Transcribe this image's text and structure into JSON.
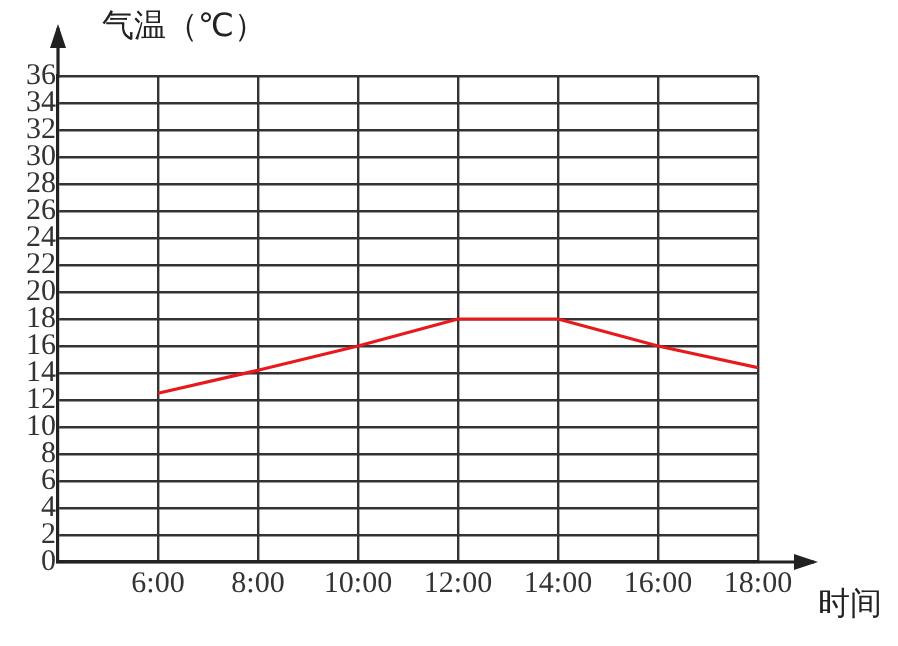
{
  "chart_data": {
    "type": "line",
    "ylabel": "气温（℃）",
    "xlabel": "时间",
    "x": [
      6,
      8,
      10,
      12,
      14,
      16,
      18
    ],
    "series": [
      {
        "color": "#e8191c",
        "values": [
          12.5,
          14.2,
          16,
          18,
          18,
          16,
          14.4
        ]
      }
    ],
    "xlim": [
      4,
      18
    ],
    "xticks": [
      {
        "value": 6,
        "label": "6:00"
      },
      {
        "value": 8,
        "label": "8:00"
      },
      {
        "value": 10,
        "label": "10:00"
      },
      {
        "value": 12,
        "label": "12:00"
      },
      {
        "value": 14,
        "label": "14:00"
      },
      {
        "value": 16,
        "label": "16:00"
      },
      {
        "value": 18,
        "label": "18:00"
      }
    ],
    "ylim": [
      0,
      36
    ],
    "yticks": [
      0,
      2,
      4,
      6,
      8,
      10,
      12,
      14,
      16,
      18,
      20,
      22,
      24,
      26,
      28,
      30,
      32,
      34,
      36
    ],
    "grid": true,
    "legend": false,
    "marker": "none",
    "line_style": "solid"
  }
}
